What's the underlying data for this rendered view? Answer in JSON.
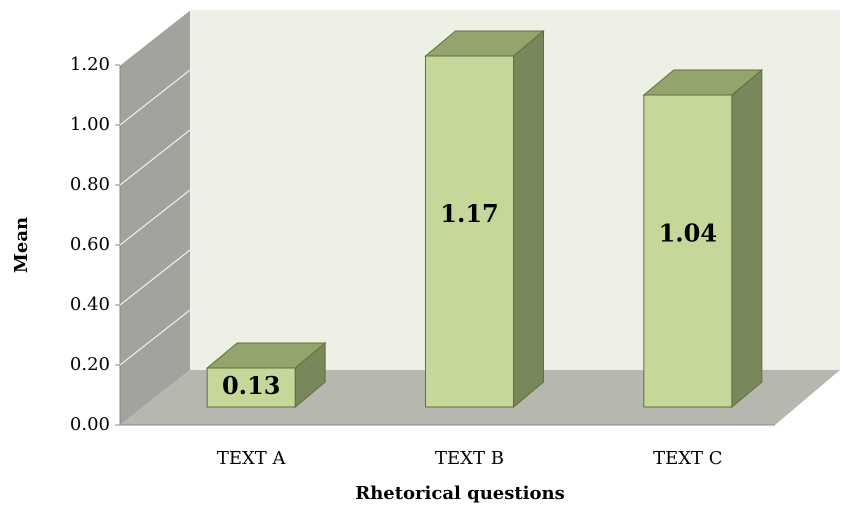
{
  "chart_data": {
    "type": "bar3d",
    "categories": [
      "TEXT A",
      "TEXT B",
      "TEXT C"
    ],
    "values": [
      0.13,
      1.17,
      1.04
    ],
    "color": "#c5d89a",
    "ylim": [
      0,
      1.2
    ],
    "yticks": [
      {
        "value": 0,
        "label": "0.00"
      },
      {
        "value": 0.2,
        "label": "0.20"
      },
      {
        "value": 0.4,
        "label": "0.40"
      },
      {
        "value": 0.6,
        "label": "0.60"
      },
      {
        "value": 0.8,
        "label": "0.80"
      },
      {
        "value": 1,
        "label": "1.00"
      },
      {
        "value": 1.2,
        "label": "1.20"
      }
    ],
    "grid": true,
    "xlabel": "Rhetorical questions",
    "ylabel": "Mean"
  }
}
